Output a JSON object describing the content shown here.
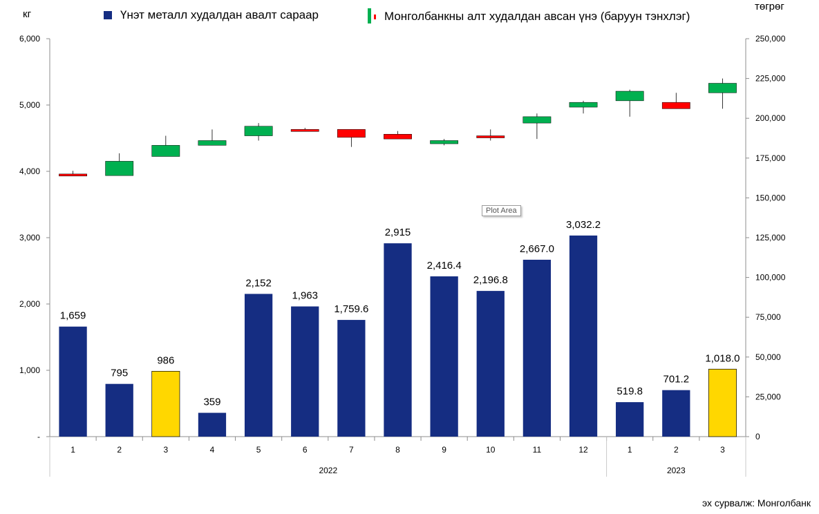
{
  "chart_data": {
    "type": "bar+candlestick",
    "left_unit": "кг",
    "right_unit": "төгрөг",
    "legend": {
      "bars": "Үнэт металл худалдан авалт сараар",
      "candles": "Монголбанкны алт худалдан авсан үнэ (баруун тэнхлэг)"
    },
    "left_axis": {
      "min": 0,
      "max": 6000,
      "ticks": [
        "-",
        "1,000",
        "2,000",
        "3,000",
        "4,000",
        "5,000",
        "6,000"
      ]
    },
    "right_axis": {
      "min": 0,
      "max": 250000,
      "ticks": [
        "0",
        "25,000",
        "50,000",
        "75,000",
        "100,000",
        "125,000",
        "150,000",
        "175,000",
        "200,000",
        "225,000",
        "250,000"
      ]
    },
    "months": [
      "1",
      "2",
      "3",
      "4",
      "5",
      "6",
      "7",
      "8",
      "9",
      "10",
      "11",
      "12",
      "1",
      "2",
      "3"
    ],
    "years": [
      {
        "label": "2022",
        "count": 12
      },
      {
        "label": "2023",
        "count": 3
      }
    ],
    "bar_values": [
      1659,
      795,
      986,
      359,
      2152,
      1963,
      1759.6,
      2915,
      2416.4,
      2196.8,
      2667.0,
      3032.2,
      519.8,
      701.2,
      1018.0
    ],
    "bar_labels": [
      "1,659",
      "795",
      "986",
      "359",
      "2,152",
      "1,963",
      "1,759.6",
      "2,915",
      "2,416.4",
      "2,196.8",
      "2,667.0",
      "3,032.2",
      "519.8",
      "701.2",
      "1,018.0"
    ],
    "bar_highlight": [
      false,
      false,
      true,
      false,
      false,
      false,
      false,
      false,
      false,
      false,
      false,
      false,
      false,
      false,
      true
    ],
    "bar_colors": {
      "normal": "#152d82",
      "highlight": "#ffd700"
    },
    "candle_colors": {
      "up": "#00b050",
      "down": "#ff0000"
    },
    "candles": [
      {
        "open": 165000,
        "close": 164000,
        "high": 167000,
        "low": 164000
      },
      {
        "open": 164000,
        "close": 173000,
        "high": 178000,
        "low": 164000
      },
      {
        "open": 176000,
        "close": 183000,
        "high": 189000,
        "low": 176000
      },
      {
        "open": 183000,
        "close": 186000,
        "high": 193000,
        "low": 183000
      },
      {
        "open": 189000,
        "close": 195000,
        "high": 197000,
        "low": 186000
      },
      {
        "open": 193000,
        "close": 192000,
        "high": 194000,
        "low": 192000
      },
      {
        "open": 193000,
        "close": 188000,
        "high": 193000,
        "low": 182000
      },
      {
        "open": 190000,
        "close": 187000,
        "high": 192000,
        "low": 187000
      },
      {
        "open": 184000,
        "close": 186000,
        "high": 187000,
        "low": 183000
      },
      {
        "open": 189000,
        "close": 188000,
        "high": 193000,
        "low": 186000
      },
      {
        "open": 197000,
        "close": 201000,
        "high": 203000,
        "low": 187000
      },
      {
        "open": 207000,
        "close": 210000,
        "high": 211000,
        "low": 203000
      },
      {
        "open": 211000,
        "close": 217000,
        "high": 218000,
        "low": 201000
      },
      {
        "open": 210000,
        "close": 206000,
        "high": 216000,
        "low": 206000
      },
      {
        "open": 216000,
        "close": 222000,
        "high": 225000,
        "low": 206000
      }
    ],
    "tooltip": "Plot Area"
  },
  "source": "эх сурвалж: Монголбанк"
}
